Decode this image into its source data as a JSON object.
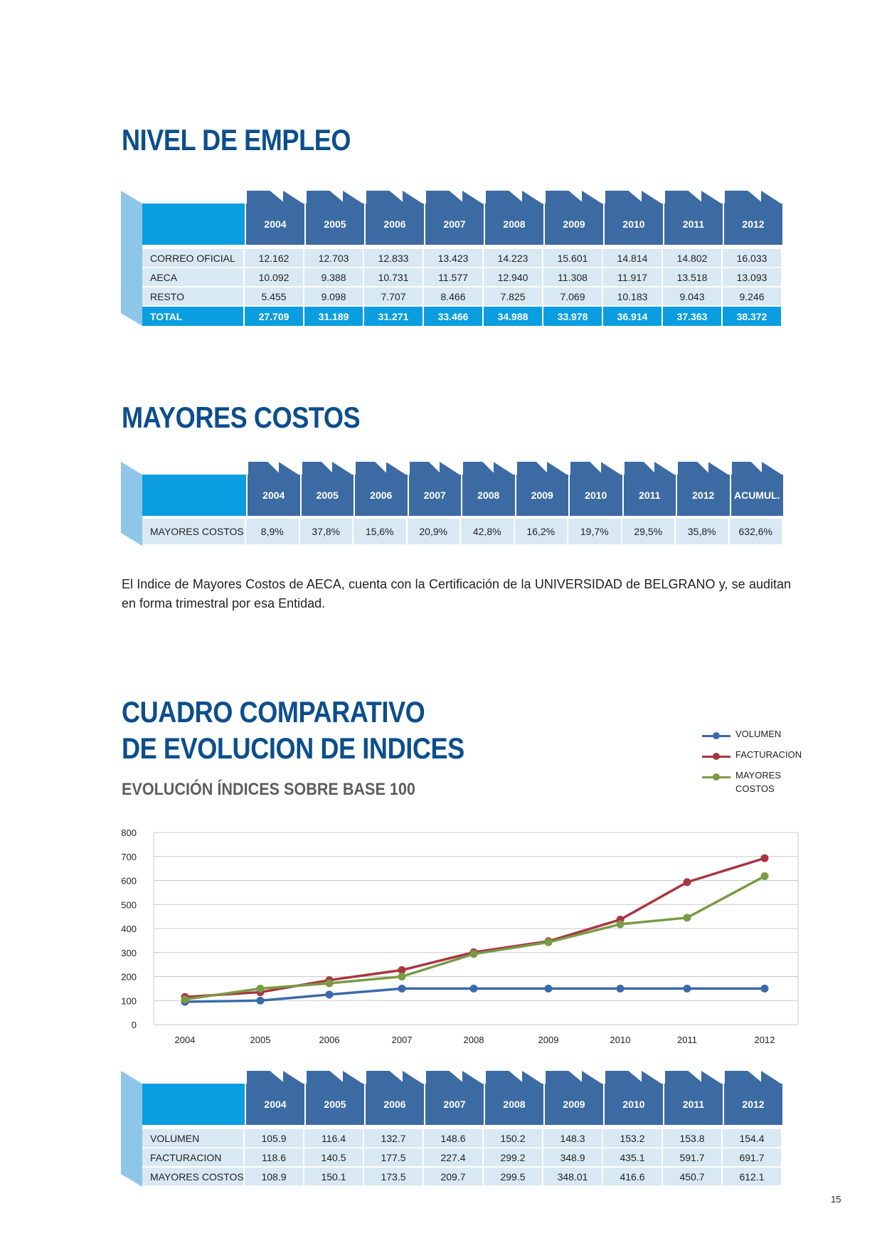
{
  "empleo": {
    "title": "NIVEL DE EMPLEO",
    "years": [
      "2004",
      "2005",
      "2006",
      "2007",
      "2008",
      "2009",
      "2010",
      "2011",
      "2012"
    ],
    "rows": [
      {
        "label": "CORREO OFICIAL",
        "values": [
          "12.162",
          "12.703",
          "12.833",
          "13.423",
          "14.223",
          "15.601",
          "14.814",
          "14.802",
          "16.033"
        ]
      },
      {
        "label": "AECA",
        "values": [
          "10.092",
          "9.388",
          "10.731",
          "11.577",
          "12.940",
          "11.308",
          "11.917",
          "13.518",
          "13.093"
        ]
      },
      {
        "label": "RESTO",
        "values": [
          "5.455",
          "9.098",
          "7.707",
          "8.466",
          "7.825",
          "7.069",
          "10.183",
          "9.043",
          "9.246"
        ]
      }
    ],
    "total": {
      "label": "TOTAL",
      "values": [
        "27.709",
        "31.189",
        "31.271",
        "33.466",
        "34.988",
        "33.978",
        "36.914",
        "37.363",
        "38.372"
      ]
    }
  },
  "costos": {
    "title": "MAYORES COSTOS",
    "headers": [
      "2004",
      "2005",
      "2006",
      "2007",
      "2008",
      "2009",
      "2010",
      "2011",
      "2012",
      "ACUMUL."
    ],
    "row": {
      "label": "MAYORES COSTOS",
      "values": [
        "8,9%",
        "37,8%",
        "15,6%",
        "20,9%",
        "42,8%",
        "16,2%",
        "19,7%",
        "29,5%",
        "35,8%",
        "632,6%"
      ]
    },
    "note": "El Indice de Mayores Costos de AECA, cuenta con la Certificación de la UNIVERSIDAD de BELGRANO y, se auditan en forma trimestral por esa Entidad."
  },
  "comparativo": {
    "title_line1": "CUADRO COMPARATIVO",
    "title_line2": "DE EVOLUCION DE INDICES",
    "subtitle": "EVOLUCIÓN ÍNDICES SOBRE BASE 100",
    "legend": [
      {
        "label": "VOLUMEN",
        "color": "#3a6aab"
      },
      {
        "label": "FACTURACION",
        "color": "#a93540"
      },
      {
        "label_line1": "MAYORES",
        "label_line2": "COSTOS",
        "color": "#7a9a45"
      }
    ],
    "years": [
      "2004",
      "2005",
      "2006",
      "2007",
      "2008",
      "2009",
      "2010",
      "2011",
      "2012"
    ],
    "rows": [
      {
        "label": "VOLUMEN",
        "values": [
          "105.9",
          "116.4",
          "132.7",
          "148.6",
          "150.2",
          "148.3",
          "153.2",
          "153.8",
          "154.4"
        ]
      },
      {
        "label": "FACTURACION",
        "values": [
          "118.6",
          "140.5",
          "177.5",
          "227.4",
          "299.2",
          "348.9",
          "435.1",
          "591.7",
          "691.7"
        ]
      },
      {
        "label": "MAYORES COSTOS",
        "values": [
          "108.9",
          "150.1",
          "173.5",
          "209.7",
          "299.5",
          "348.01",
          "416.6",
          "450.7",
          "612.1"
        ]
      }
    ]
  },
  "chart_data": {
    "type": "line",
    "title": "EVOLUCIÓN ÍNDICES SOBRE BASE 100",
    "x": [
      "2004",
      "2005",
      "2006",
      "2007",
      "2008",
      "2009",
      "2010",
      "2011",
      "2012"
    ],
    "ylim": [
      0,
      800
    ],
    "yticks": [
      0,
      100,
      200,
      300,
      400,
      500,
      600,
      700,
      800
    ],
    "grid": true,
    "legend_position": "top-right",
    "series": [
      {
        "name": "VOLUMEN",
        "color": "#3a6aab",
        "values": [
          95,
          100,
          125,
          150,
          150,
          150,
          150,
          150,
          150
        ]
      },
      {
        "name": "FACTURACION",
        "color": "#a93540",
        "values": [
          115,
          135,
          185,
          227,
          301,
          347,
          437,
          593,
          693
        ]
      },
      {
        "name": "MAYORES COSTOS",
        "color": "#7a9a45",
        "values": [
          105,
          150,
          172,
          200,
          294,
          343,
          418,
          445,
          618
        ]
      }
    ]
  },
  "page_number": "15"
}
